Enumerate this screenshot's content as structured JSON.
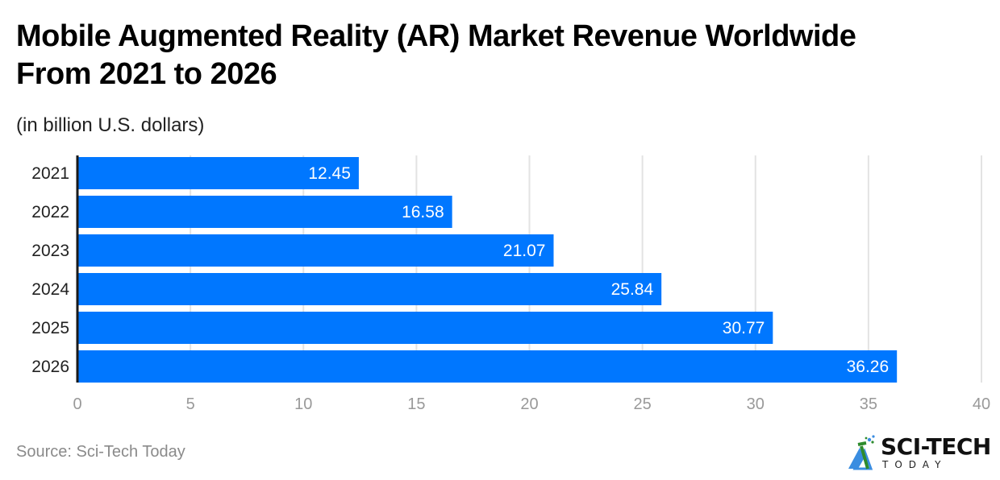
{
  "header": {
    "title_line1": "Mobile Augmented Reality (AR) Market Revenue Worldwide",
    "title_line2": "From 2021 to 2026",
    "subtitle": "(in billion U.S. dollars)"
  },
  "footer": {
    "source": "Source: Sci-Tech Today",
    "logo_text": "SCI-TECH",
    "logo_subtext": "TODAY",
    "logo_icon": "sci-tech-logo-icon"
  },
  "colors": {
    "bar": "#0077ff",
    "grid": "#e3e3e3",
    "axis": "#1a1a1a",
    "tick_label": "#999999",
    "category_label": "#222222",
    "data_label": "#ffffff"
  },
  "chart_data": {
    "type": "bar",
    "orientation": "horizontal",
    "title": "Mobile Augmented Reality (AR) Market Revenue Worldwide From 2021 to 2026",
    "subtitle": "(in billion U.S. dollars)",
    "categories": [
      "2021",
      "2022",
      "2023",
      "2024",
      "2025",
      "2026"
    ],
    "values": [
      12.45,
      16.58,
      21.07,
      25.84,
      30.77,
      36.26
    ],
    "data_labels": [
      "12.45",
      "16.58",
      "21.07",
      "25.84",
      "30.77",
      "36.26"
    ],
    "xlabel": "",
    "ylabel": "",
    "xlim": [
      0,
      40
    ],
    "xticks": [
      0,
      5,
      10,
      15,
      20,
      25,
      30,
      35,
      40
    ],
    "grid": true,
    "legend": "none"
  }
}
